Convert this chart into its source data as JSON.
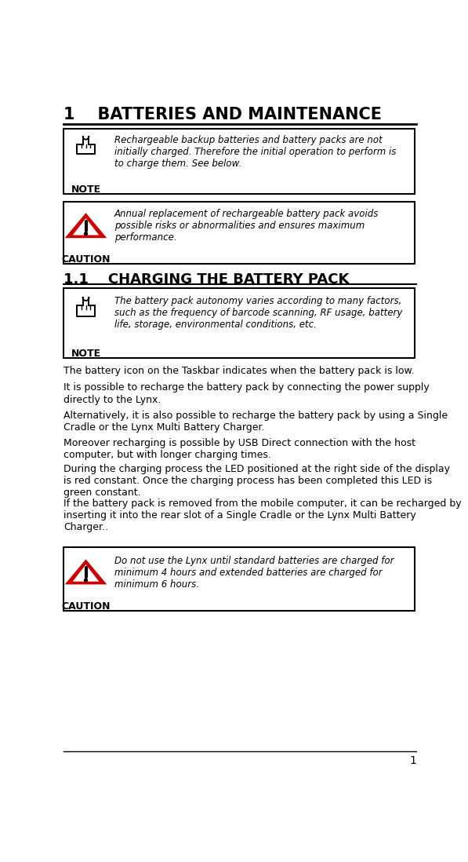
{
  "title": "1    BATTERIES AND MAINTENANCE",
  "section_title": "1.1    CHARGING THE BATTERY PACK",
  "bg_color": "#ffffff",
  "text_color": "#000000",
  "note_box1_text": "Rechargeable backup batteries and battery packs are not\ninitially charged. Therefore the initial operation to perform is\nto charge them. See below.",
  "caution_box1_text": "Annual replacement of rechargeable battery pack avoids\npossible risks or abnormalities and ensures maximum\nperformance.",
  "note_box2_text": "The battery pack autonomy varies according to many factors,\nsuch as the frequency of barcode scanning, RF usage, battery\nlife, storage, environmental conditions, etc.",
  "body_paragraphs": [
    "The battery icon on the Taskbar indicates when the battery pack is low.",
    "It is possible to recharge the battery pack by connecting the power supply\ndirectly to the Lynx.",
    "Alternatively, it is also possible to recharge the battery pack by using a Single\nCradle or the Lynx Multi Battery Charger.",
    "Moreover recharging is possible by USB Direct connection with the host\ncomputer, but with longer charging times.",
    "During the charging process the LED positioned at the right side of the display\nis red constant. Once the charging process has been completed this LED is\ngreen constant.",
    "If the battery pack is removed from the mobile computer, it can be recharged by\ninserting it into the rear slot of a Single Cradle or the Lynx Multi Battery\nCharger.."
  ],
  "caution_box2_text": "Do not use the Lynx until standard batteries are charged for\nminimum 4 hours and extended batteries are charged for\nminimum 6 hours.",
  "page_number": "1",
  "caution_color": "#cc0000"
}
